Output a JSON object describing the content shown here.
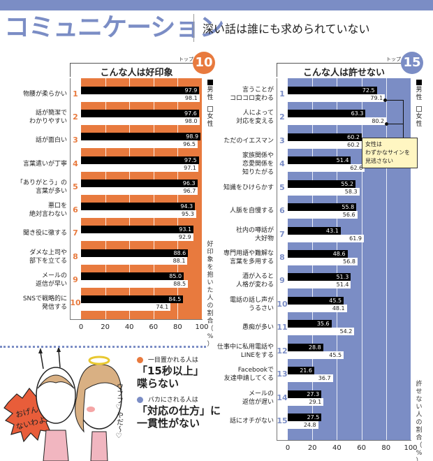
{
  "header": {
    "title": "コミュニケーション",
    "subtitle": "深い話は誰にも求められていない"
  },
  "colors": {
    "accent_blue": "#7b8dc5",
    "accent_orange": "#e87a3e",
    "male": "#000000",
    "female": "#ffffff"
  },
  "legend": {
    "male": "男性",
    "female": "女性"
  },
  "notes": [
    {
      "bullet_color": "#e87a3e",
      "small": "一目置かれる人は",
      "big_line1": "「15秒以上」",
      "big_line2": "喋らない"
    },
    {
      "bullet_color": "#7b8dc5",
      "small": "バカにされる人は",
      "big_line1": "「対応の仕方」に",
      "big_line2": "一貫性がない"
    }
  ],
  "illustration": {
    "speech_text": "おげんじゃないわよ!!",
    "side_text": "ウフフ♡やだ〜♡"
  },
  "callout": {
    "line1": "女性は",
    "line2": "わずかなサインを",
    "line3": "見逃さない"
  },
  "chart_data": [
    {
      "type": "bar",
      "title": "こんな人は好印象",
      "top_label": "トップ",
      "top_count": "10",
      "xlabel": "好印象を抱いた人の割合（%）",
      "xlim": [
        0,
        100
      ],
      "xticks": [
        "0",
        "20",
        "40",
        "60",
        "80",
        "100"
      ],
      "legend_position": "right",
      "grid": true,
      "categories": [
        "物腰が柔らかい",
        "話が簡潔で\nわかりやすい",
        "話が面白い",
        "言葉遣いが丁寧",
        "「ありがとう」の\n言葉が多い",
        "悪口を\n絶対言わない",
        "聞き役に徹する",
        "ダメな上司や\n部下を立てる",
        "メールの\n返信が早い",
        "SNSで戦略的に\n発信する"
      ],
      "ranks": [
        "1",
        "2",
        "3",
        "4",
        "5",
        "6",
        "7",
        "8",
        "9",
        "10"
      ],
      "series": [
        {
          "name": "男性",
          "values": [
            97.9,
            97.6,
            98.9,
            97.5,
            96.3,
            94.3,
            93.1,
            88.6,
            85.0,
            84.5
          ]
        },
        {
          "name": "女性",
          "values": [
            98.1,
            98.0,
            96.5,
            97.1,
            96.7,
            95.3,
            92.9,
            88.1,
            88.5,
            74.1
          ]
        }
      ]
    },
    {
      "type": "bar",
      "title": "こんな人は許せない",
      "top_label": "トップ",
      "top_count": "15",
      "xlabel": "許せない人の割合（%）",
      "xlim": [
        0,
        100
      ],
      "xticks": [
        "0",
        "20",
        "40",
        "60",
        "80",
        "100"
      ],
      "legend_position": "right",
      "grid": true,
      "categories": [
        "言うことが\nコロコロ変わる",
        "人によって\n対応を変える",
        "ただのイエスマン",
        "家族関係や\n恋愛関係を\n知りたがる",
        "知識をひけらかす",
        "人脈を自慢する",
        "社内の噂話が\n大好物",
        "専門用語や難解な\n言葉を多用する",
        "酒が入ると\n人格が変わる",
        "電話の話し声が\nうるさい",
        "愚痴が多い",
        "仕事中に私用電話や\nLINEをする",
        "Facebookで\n友達申請してくる",
        "メールの\n返信が遅い",
        "話にオチがない"
      ],
      "ranks": [
        "1",
        "2",
        "3",
        "4",
        "5",
        "6",
        "7",
        "8",
        "9",
        "10",
        "11",
        "12",
        "13",
        "14",
        "15"
      ],
      "series": [
        {
          "name": "男性",
          "values": [
            72.5,
            63.3,
            60.2,
            51.4,
            55.2,
            55.8,
            43.1,
            48.6,
            51.3,
            45.5,
            35.6,
            28.8,
            21.6,
            27.3,
            27.5
          ]
        },
        {
          "name": "女性",
          "values": [
            79.1,
            80.2,
            60.2,
            62.6,
            58.3,
            56.6,
            61.9,
            56.8,
            51.4,
            48.1,
            54.2,
            45.5,
            36.7,
            29.1,
            24.8
          ]
        }
      ]
    }
  ]
}
